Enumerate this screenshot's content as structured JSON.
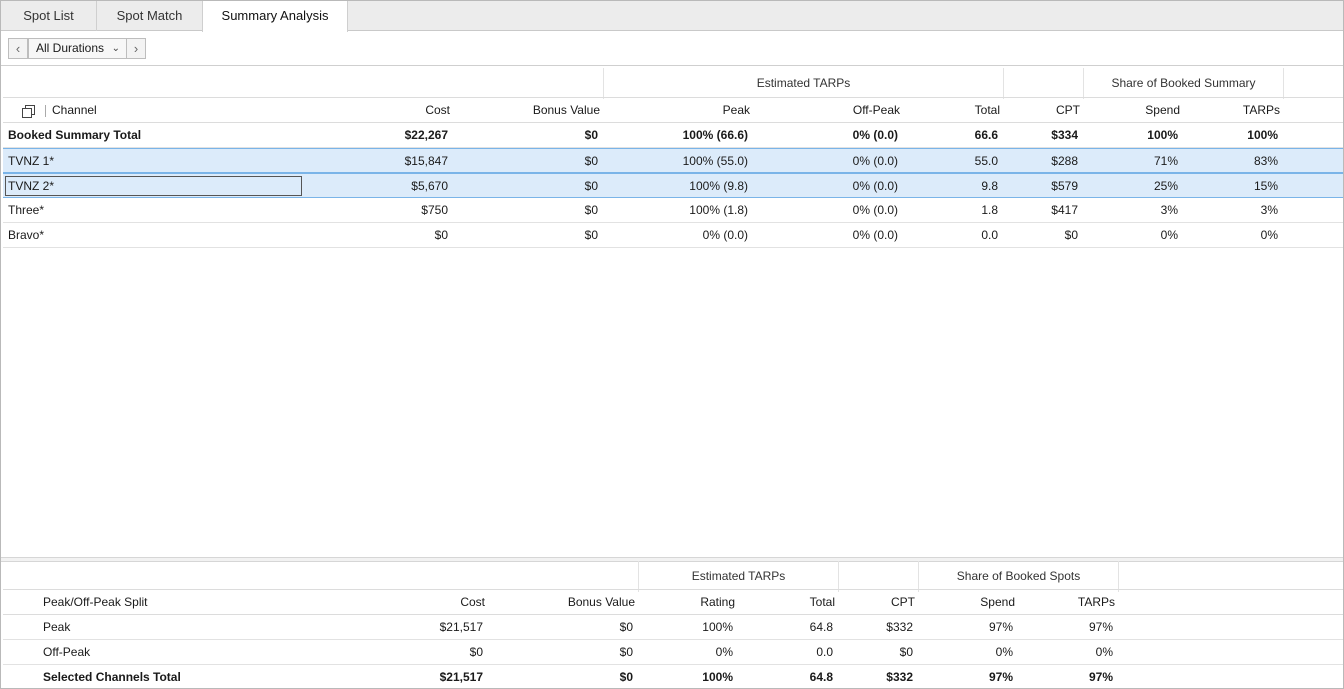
{
  "tabs": [
    {
      "label": "Spot List",
      "active": false
    },
    {
      "label": "Spot Match",
      "active": false
    },
    {
      "label": "Summary Analysis",
      "active": true
    }
  ],
  "duration": {
    "prev": "‹",
    "selected": "All Durations",
    "next": "›"
  },
  "summary": {
    "group_headers": {
      "estimated_tarps": "Estimated TARPs",
      "share": "Share of Booked Summary"
    },
    "columns": [
      "Channel",
      "Cost",
      "Bonus Value",
      "Peak",
      "Off-Peak",
      "Total",
      "CPT",
      "Spend",
      "TARPs"
    ],
    "rows": [
      {
        "channel": "Booked Summary Total",
        "cost": "$22,267",
        "bonus": "$0",
        "peak": "100% (66.6)",
        "offpeak": "0% (0.0)",
        "total": "66.6",
        "cpt": "$334",
        "spend": "100%",
        "tarps": "100%"
      },
      {
        "channel": "TVNZ 1*",
        "cost": "$15,847",
        "bonus": "$0",
        "peak": "100% (55.0)",
        "offpeak": "0% (0.0)",
        "total": "55.0",
        "cpt": "$288",
        "spend": "71%",
        "tarps": "83%"
      },
      {
        "channel": "TVNZ 2*",
        "cost": "$5,670",
        "bonus": "$0",
        "peak": "100% (9.8)",
        "offpeak": "0% (0.0)",
        "total": "9.8",
        "cpt": "$579",
        "spend": "25%",
        "tarps": "15%"
      },
      {
        "channel": "Three*",
        "cost": "$750",
        "bonus": "$0",
        "peak": "100% (1.8)",
        "offpeak": "0% (0.0)",
        "total": "1.8",
        "cpt": "$417",
        "spend": "3%",
        "tarps": "3%"
      },
      {
        "channel": "Bravo*",
        "cost": "$0",
        "bonus": "$0",
        "peak": "0% (0.0)",
        "offpeak": "0% (0.0)",
        "total": "0.0",
        "cpt": "$0",
        "spend": "0%",
        "tarps": "0%"
      }
    ]
  },
  "split": {
    "group_headers": {
      "estimated_tarps": "Estimated TARPs",
      "share": "Share of Booked Spots"
    },
    "columns": [
      "Peak/Off-Peak Split",
      "Cost",
      "Bonus Value",
      "Rating",
      "Total",
      "CPT",
      "Spend",
      "TARPs"
    ],
    "rows": [
      {
        "label": "Peak",
        "cost": "$21,517",
        "bonus": "$0",
        "rating": "100%",
        "total": "64.8",
        "cpt": "$332",
        "spend": "97%",
        "tarps": "97%"
      },
      {
        "label": "Off-Peak",
        "cost": "$0",
        "bonus": "$0",
        "rating": "0%",
        "total": "0.0",
        "cpt": "$0",
        "spend": "0%",
        "tarps": "0%"
      },
      {
        "label": "Selected Channels Total",
        "cost": "$21,517",
        "bonus": "$0",
        "rating": "100%",
        "total": "64.8",
        "cpt": "$332",
        "spend": "97%",
        "tarps": "97%"
      }
    ]
  },
  "colors": {
    "selection": "#dcebfa",
    "selection_border": "#7ab4e8",
    "tab_bg": "#ececec"
  }
}
